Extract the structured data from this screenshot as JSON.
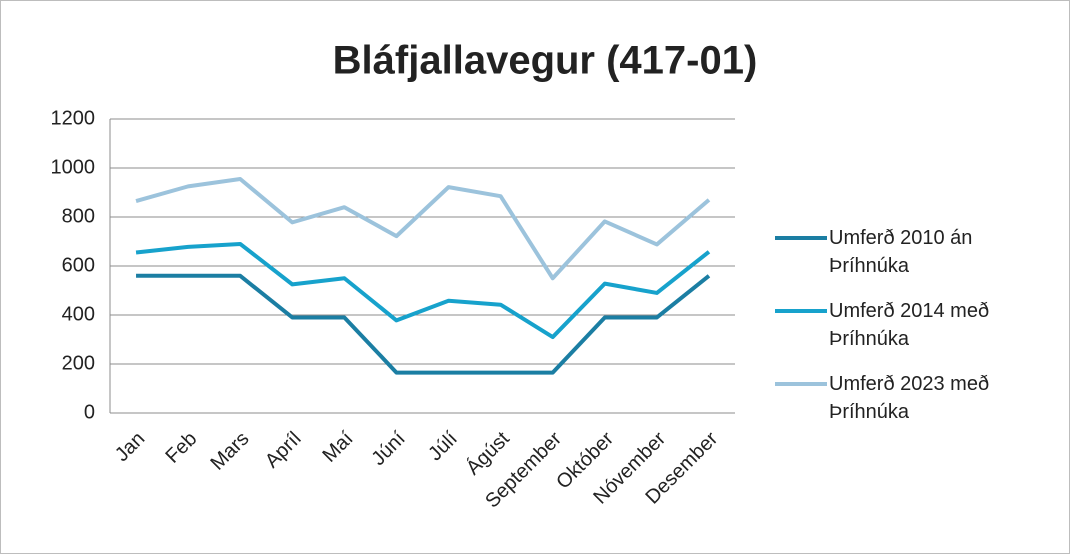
{
  "chart_data": {
    "type": "line",
    "title": "Bláfjallavegur (417-01)",
    "categories": [
      "Jan",
      "Feb",
      "Mars",
      "Apríl",
      "Maí",
      "Júní",
      "Júlí",
      "Ágúst",
      "September",
      "Október",
      "Nóvember",
      "Desember"
    ],
    "series": [
      {
        "name": "Umferð 2010 án Þríhnúka",
        "color": "#1b7ea3",
        "values": [
          560,
          560,
          560,
          390,
          390,
          165,
          165,
          165,
          165,
          390,
          390,
          560
        ]
      },
      {
        "name": "Umferð 2014 með Þríhnúka",
        "color": "#17a2cc",
        "values": [
          655,
          678,
          690,
          525,
          550,
          378,
          458,
          442,
          310,
          528,
          490,
          658
        ]
      },
      {
        "name": "Umferð 2023 með Þríhnúka",
        "color": "#9cc3dc",
        "values": [
          865,
          925,
          955,
          778,
          840,
          722,
          922,
          885,
          550,
          782,
          688,
          870
        ]
      }
    ],
    "ylim": [
      0,
      1200
    ],
    "yticks": [
      0,
      200,
      400,
      600,
      800,
      1000,
      1200
    ],
    "grid": true,
    "legend": "right"
  }
}
